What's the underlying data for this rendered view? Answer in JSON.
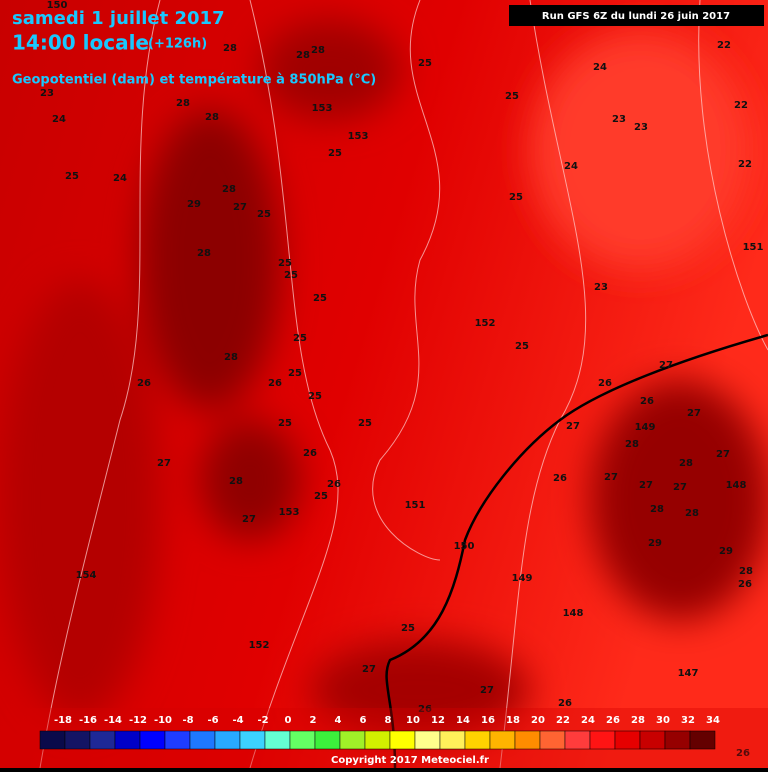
{
  "header": {
    "date": "samedi 1 juillet 2017",
    "time": "14:00 locale",
    "lead": "(+126h)",
    "subtitle": "Geopotentiel (dam) et température à 850hPa (°C)",
    "run": "Run GFS 6Z du lundi 26 juin 2017"
  },
  "map_labels": [
    150,
    28,
    28,
    28,
    25,
    24,
    22,
    23,
    28,
    28,
    153,
    25,
    23,
    23,
    22,
    24,
    153,
    25,
    24,
    22,
    25,
    24,
    28,
    29,
    27,
    25,
    25,
    151,
    28,
    25,
    25,
    23,
    25,
    152,
    25,
    25,
    28,
    27,
    25,
    26,
    26,
    26,
    25,
    26,
    27,
    25,
    25,
    27,
    149,
    28,
    27,
    26,
    28,
    27,
    27,
    26,
    28,
    26,
    25,
    27,
    27,
    148,
    151,
    153,
    27,
    28,
    28,
    29,
    150,
    29,
    28,
    154,
    149,
    26,
    148,
    25,
    152,
    27,
    147,
    27,
    26,
    26,
    26
  ],
  "colorbar": {
    "labels": [
      -18,
      -16,
      -14,
      -12,
      -10,
      -8,
      -6,
      -4,
      -2,
      0,
      2,
      4,
      6,
      8,
      10,
      12,
      14,
      16,
      18,
      20,
      22,
      24,
      26,
      28,
      30,
      32,
      34
    ],
    "colors": [
      "#0a0a4a",
      "#141464",
      "#1e2896",
      "#0000c8",
      "#0000ff",
      "#1e3cff",
      "#1e78ff",
      "#28aaff",
      "#3cd2ff",
      "#64ffd2",
      "#64ff64",
      "#3cf03c",
      "#a0f028",
      "#d2f000",
      "#ffff00",
      "#ffff8c",
      "#fff05a",
      "#ffd200",
      "#ffb400",
      "#ff8c00",
      "#ff6432",
      "#ff3c3c",
      "#ff1414",
      "#e60000",
      "#c80000",
      "#960000",
      "#640000"
    ]
  },
  "copyright": "Copyright 2017 Meteociel.fr"
}
